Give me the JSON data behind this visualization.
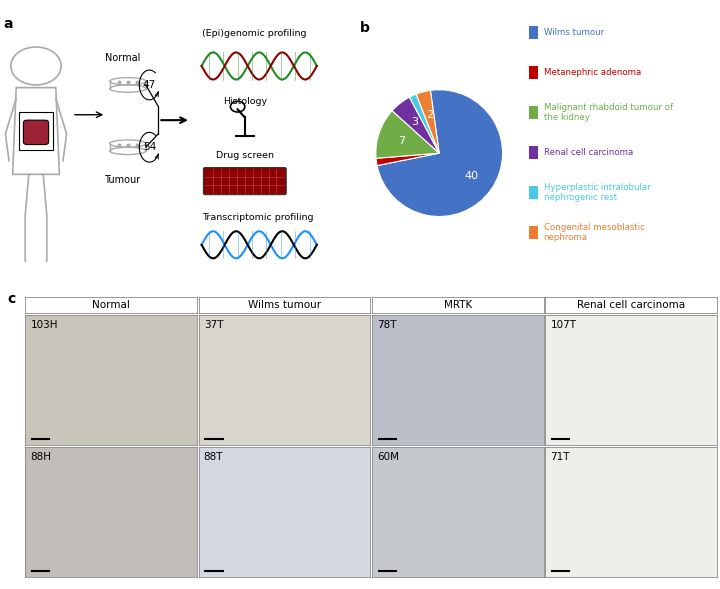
{
  "pie_values": [
    40,
    1,
    7,
    3,
    1,
    2
  ],
  "pie_labels_show": [
    "40",
    "",
    "7",
    "3",
    "",
    "2"
  ],
  "pie_colors": [
    "#4472C4",
    "#C00000",
    "#70AD47",
    "#7030A0",
    "#48CAE4",
    "#ED7D31"
  ],
  "pie_startangle": 98,
  "pie_counterclock": false,
  "legend_labels": [
    "Wilms tumour",
    "Metanephric adenoma",
    "Malignant rhabdoid tumour of\nthe kidney",
    "Renal cell carcinoma",
    "Hyperplastic intralobular\nnephrogenic rest",
    "Congenital mesoblastic\nnephroma"
  ],
  "legend_colors": [
    "#4472C4",
    "#C00000",
    "#70AD47",
    "#7030A0",
    "#48CAE4",
    "#ED7D31"
  ],
  "panel_a_label": "a",
  "panel_b_label": "b",
  "panel_c_label": "c",
  "col_headers": [
    "Normal",
    "Wilms tumour",
    "MRTK",
    "Renal cell carcinoma"
  ],
  "row_labels": [
    [
      "103H",
      "37T",
      "78T",
      "107T"
    ],
    [
      "88H",
      "88T",
      "60M",
      "71T"
    ]
  ],
  "cell_bg_colors": [
    [
      "#C8C5BA",
      "#D8D5CC",
      "#BBBEC8",
      "#F0EEE8"
    ],
    [
      "#C0BDBA",
      "#D5D8E0",
      "#C5C8CC",
      "#F0EEE8"
    ]
  ],
  "bg_color": "#FFFFFF",
  "panel_a_bg": "#FFFFFF",
  "label_fontsize": 10,
  "text_fontsize": 7.5,
  "normal_label": "Normal",
  "tumour_label": "Tumour",
  "normal_count": "47",
  "tumour_count": "54",
  "profiling_labels": [
    "(Epi)genomic profiling",
    "Histology",
    "Drug screen",
    "Transcriptomic profiling"
  ],
  "header_bg": "#F0F0F0",
  "header_border": "#888888"
}
